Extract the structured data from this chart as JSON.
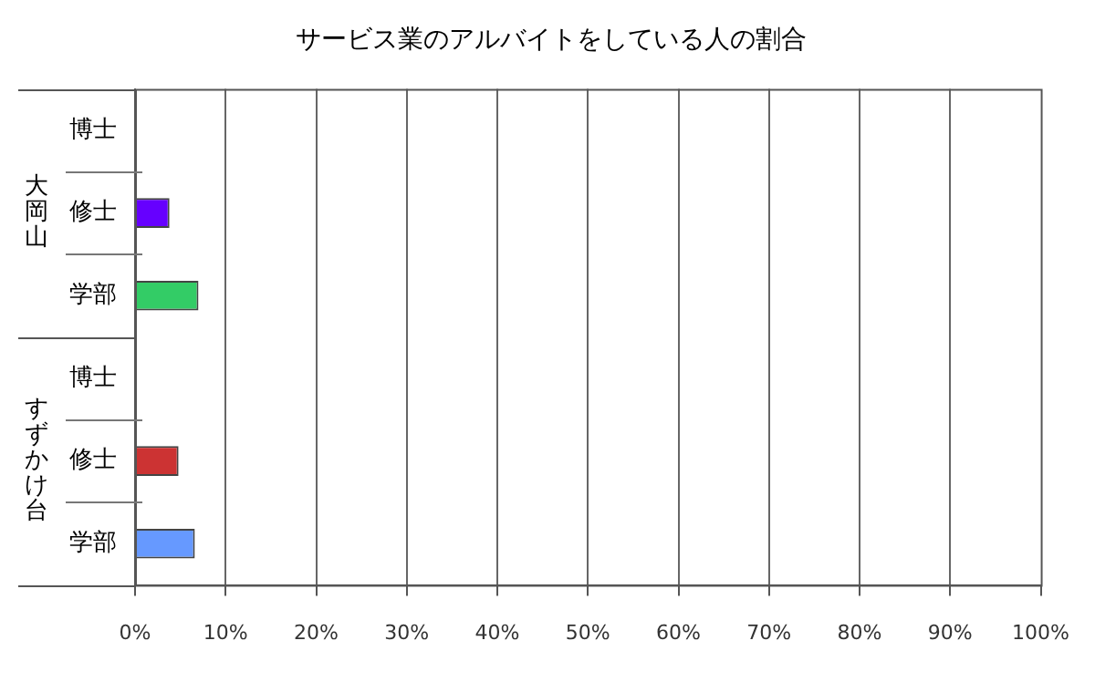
{
  "chart_data": {
    "type": "bar",
    "orientation": "horizontal",
    "title": "サービス業のアルバイトをしている人の割合",
    "categories": [
      "博士",
      "修士",
      "学部",
      "博士",
      "修士",
      "学部"
    ],
    "values": [
      0,
      3.8,
      7,
      0,
      4.8,
      6.6
    ],
    "colors": [
      "#6600ff",
      "#6600ff",
      "#33cc66",
      "#cc3333",
      "#cc3333",
      "#6699ff"
    ],
    "xlim": [
      0,
      100
    ],
    "xticks": [
      {
        "value": 0,
        "label": "0%"
      },
      {
        "value": 10,
        "label": "10%"
      },
      {
        "value": 20,
        "label": "20%"
      },
      {
        "value": 30,
        "label": "30%"
      },
      {
        "value": 40,
        "label": "40%"
      },
      {
        "value": 50,
        "label": "50%"
      },
      {
        "value": 60,
        "label": "60%"
      },
      {
        "value": 70,
        "label": "70%"
      },
      {
        "value": 80,
        "label": "80%"
      },
      {
        "value": 90,
        "label": "90%"
      },
      {
        "value": 100,
        "label": "100%"
      }
    ],
    "annotations": [
      "大岡山",
      "すずかけ台"
    ],
    "grid": "x",
    "legend": false
  }
}
